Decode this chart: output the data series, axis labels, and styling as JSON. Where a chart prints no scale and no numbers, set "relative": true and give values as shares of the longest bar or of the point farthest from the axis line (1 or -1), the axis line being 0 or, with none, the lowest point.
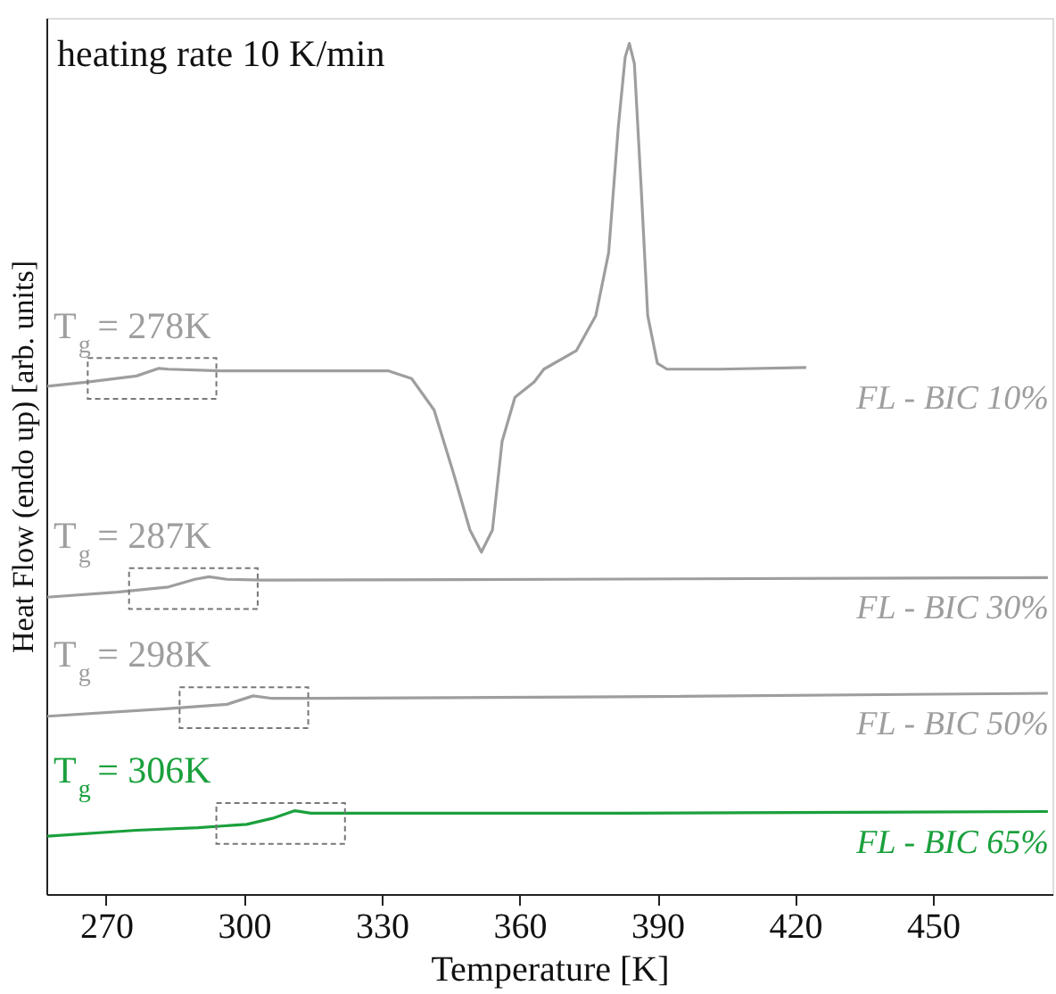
{
  "chart_data": {
    "type": "line",
    "relative": true,
    "xlabel": "Temperature [K]",
    "ylabel": "Heat Flow (endo up) [arb. units]",
    "xlim": [
      257,
      476
    ],
    "xticks": [
      270,
      300,
      330,
      360,
      390,
      420,
      450
    ],
    "marker": "none",
    "line_style": "solid",
    "series": [
      {
        "name": "FL - BIC 10%",
        "color": "#9e9e9e",
        "x": [
          257.2,
          266.0,
          276.6,
          281.5,
          283.6,
          294.9,
          331.5,
          336.5,
          341.4,
          345.6,
          349.2,
          351.7,
          354.1,
          356.2,
          359.0,
          363.2,
          365.3,
          372.4,
          376.6,
          379.4,
          381.5,
          383.0,
          383.9,
          385.0,
          386.5,
          387.9,
          390.0,
          392.1,
          403.4,
          422.4
        ],
        "values": [
          0.597,
          0.602,
          0.609,
          0.618,
          0.617,
          0.615,
          0.615,
          0.606,
          0.569,
          0.495,
          0.428,
          0.402,
          0.428,
          0.532,
          0.584,
          0.602,
          0.617,
          0.639,
          0.68,
          0.754,
          0.902,
          0.984,
          1.0,
          0.976,
          0.828,
          0.68,
          0.624,
          0.617,
          0.617,
          0.619
        ]
      },
      {
        "name": "FL - BIC 30%",
        "color": "#9e9e9e",
        "x": [
          257.2,
          272.4,
          283.6,
          289.3,
          292.4,
          296.3,
          304.1,
          368.2,
          475.0
        ],
        "values": [
          0.349,
          0.355,
          0.361,
          0.37,
          0.373,
          0.37,
          0.369,
          0.37,
          0.372
        ]
      },
      {
        "name": "FL - BIC 50%",
        "color": "#9e9e9e",
        "x": [
          257.2,
          283.6,
          296.3,
          302.0,
          306.2,
          315.3,
          382.2,
          475.0
        ],
        "values": [
          0.209,
          0.218,
          0.223,
          0.233,
          0.23,
          0.23,
          0.232,
          0.236
        ]
      },
      {
        "name": "FL - BIC 65%",
        "color": "#1aa03c",
        "x": [
          257.2,
          276.6,
          290.0,
          300.6,
          306.2,
          311.1,
          314.6,
          324.5,
          382.2,
          475.0
        ],
        "values": [
          0.068,
          0.075,
          0.078,
          0.082,
          0.089,
          0.098,
          0.095,
          0.095,
          0.095,
          0.097
        ]
      }
    ],
    "annotations": [
      "heating rate 10 K/min",
      {
        "text": "T$_{g}$ = 278K",
        "x": 278,
        "y": 0.612
      },
      {
        "text": "T$_{g}$ = 287K",
        "x": 287,
        "y": 0.365
      },
      {
        "text": "T$_{g}$ = 298K",
        "x": 298,
        "y": 0.225
      },
      {
        "text": "T$_{g}$ = 306K",
        "x": 306,
        "y": 0.089
      }
    ]
  }
}
